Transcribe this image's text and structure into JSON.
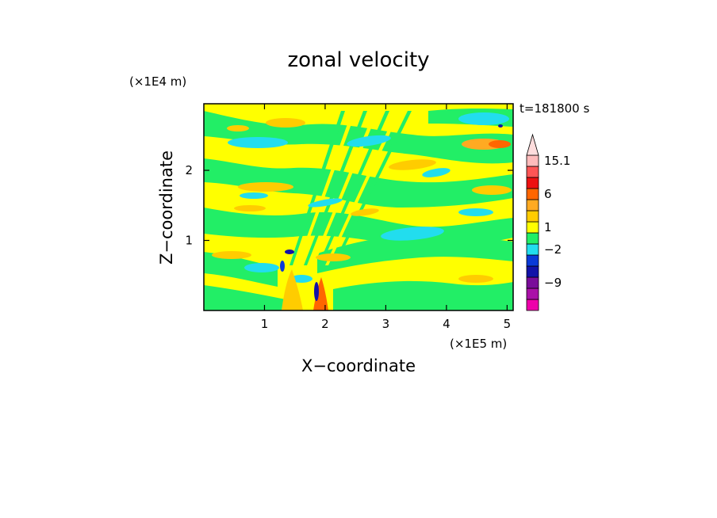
{
  "chart_data": {
    "type": "heatmap",
    "title": "zonal velocity",
    "xlabel": "X−coordinate",
    "ylabel": "Z−coordinate",
    "x_unit": "(×1E5 m)",
    "y_unit": "(×1E4 m)",
    "time_label": "t=181800 s",
    "xlim": [
      0,
      5.1
    ],
    "ylim": [
      0,
      2.95
    ],
    "x_ticks": [
      {
        "value": 1,
        "label": "1"
      },
      {
        "value": 2,
        "label": "2"
      },
      {
        "value": 3,
        "label": "3"
      },
      {
        "value": 4,
        "label": "4"
      },
      {
        "value": 5,
        "label": "5"
      }
    ],
    "y_ticks": [
      {
        "value": 1,
        "label": "1"
      },
      {
        "value": 2,
        "label": "2"
      }
    ],
    "colorbar": {
      "bands": [
        {
          "color": "#ee00aa"
        },
        {
          "color": "#aa10a8"
        },
        {
          "color": "#7a0c9a"
        },
        {
          "color": "#1212a8"
        },
        {
          "color": "#0a3ad8"
        },
        {
          "color": "#22ddee"
        },
        {
          "color": "#22ee66"
        },
        {
          "color": "#ffff00"
        },
        {
          "color": "#ffcc00"
        },
        {
          "color": "#ffaa22"
        },
        {
          "color": "#ff6600"
        },
        {
          "color": "#ee1111"
        },
        {
          "color": "#ff5555"
        },
        {
          "color": "#ffbbbb"
        }
      ],
      "labels": [
        {
          "text": "−9",
          "band_edge": 2.5
        },
        {
          "text": "−2",
          "band_edge": 5.5
        },
        {
          "text": "1",
          "band_edge": 7.5
        },
        {
          "text": "6",
          "band_edge": 10.5
        },
        {
          "text": "15.1",
          "band_edge": 13.5
        }
      ],
      "extend_top_color": "#ffdddd"
    },
    "field_colors": {
      "zero": "#ffff00",
      "weak_neg": "#22ee66",
      "neg": "#22ddee",
      "weak_pos": "#ffcc00",
      "pos": "#ffaa22",
      "strong_pos": "#ff6600",
      "strong_neg": "#1212a8",
      "very_strong_neg": "#0a3ad8"
    }
  }
}
